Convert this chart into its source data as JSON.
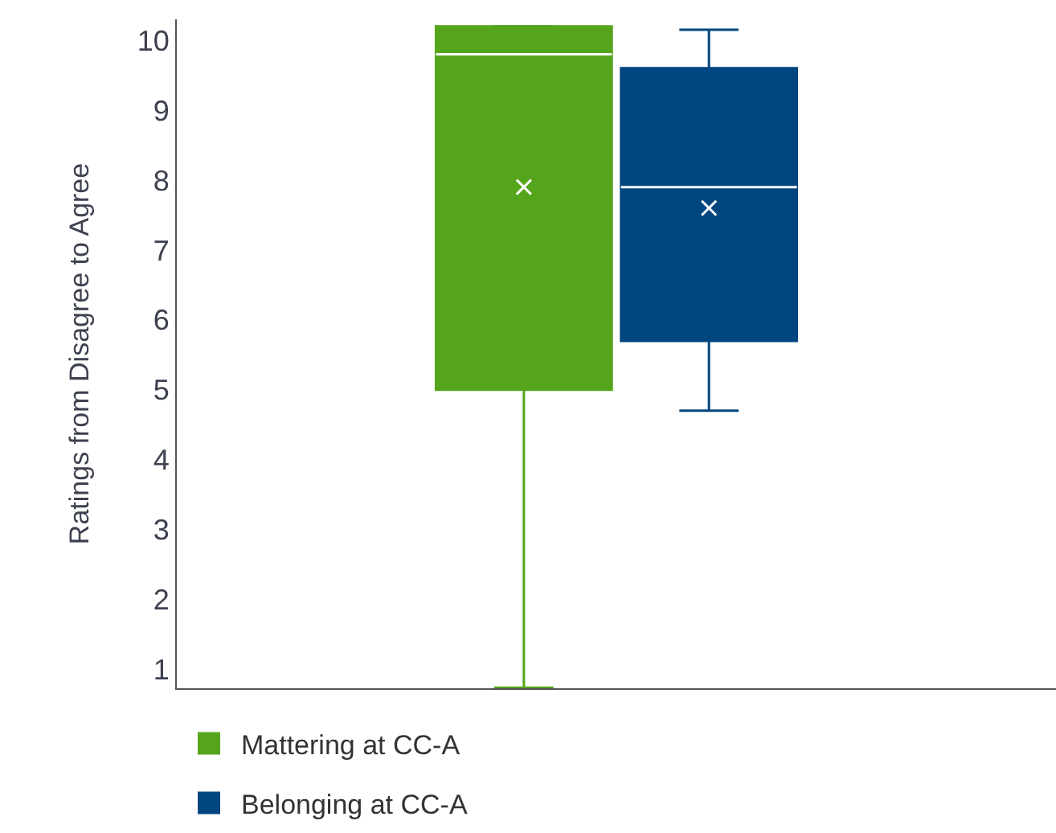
{
  "chart_data": {
    "type": "box",
    "ylabel": "Ratings from Disagree to Agree",
    "categories": [
      null
    ],
    "series": [
      {
        "name": "Mattering at CC-A",
        "color": "#55a51c",
        "boxes": [
          {
            "low": 0.74,
            "q1": 5.0,
            "median": 9.8,
            "q3": 10.2,
            "high": 10.2,
            "mean": 7.9
          }
        ]
      },
      {
        "name": "Belonging at CC-A",
        "color": "#00467f",
        "boxes": [
          {
            "low": 4.7,
            "q1": 5.7,
            "median": 7.9,
            "q3": 9.6,
            "high": 10.15,
            "mean": 7.6
          }
        ]
      }
    ],
    "ylim": [
      0.73,
      10.3
    ],
    "yticks": [
      1,
      2,
      3,
      4,
      5,
      6,
      7,
      8,
      9,
      10
    ],
    "legend": "bottom left",
    "marker": "cross"
  }
}
